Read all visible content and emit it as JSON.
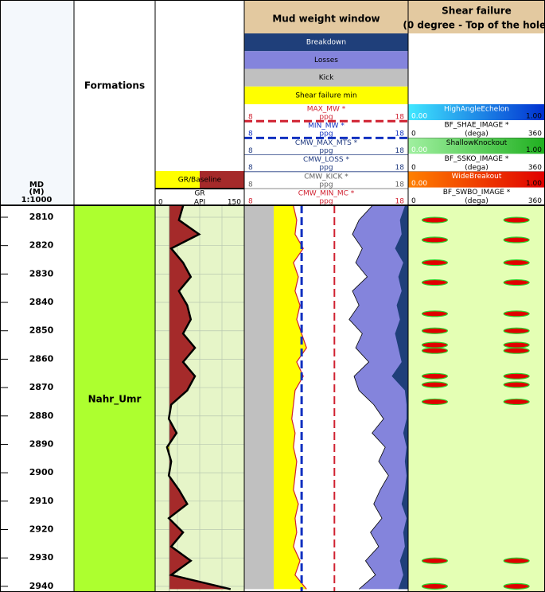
{
  "md_track": {
    "title": [
      "MD",
      "(M)"
    ],
    "scale": "1:1000",
    "ylim": [
      2805.8,
      2942
    ],
    "yticks": [
      2810,
      2820,
      2830,
      2840,
      2850,
      2860,
      2870,
      2880,
      2890,
      2900,
      2910,
      2920,
      2930,
      2940
    ]
  },
  "formations": {
    "title": "Formations",
    "zones": [
      "Nahr_Umr"
    ]
  },
  "depth": [
    2806,
    2811,
    2816,
    2821,
    2826,
    2831,
    2836,
    2841,
    2846,
    2851,
    2856,
    2861,
    2866,
    2871,
    2876,
    2881,
    2886,
    2891,
    2896,
    2901,
    2906,
    2911,
    2916,
    2921,
    2926,
    2931,
    2936,
    2941
  ],
  "gr_track": {
    "fill_label": "GR/Baseline",
    "curve": "GR",
    "xlim": [
      0,
      150
    ],
    "unit": "API",
    "baseline": 24,
    "values": [
      47,
      40,
      74,
      27,
      47,
      60,
      40,
      54,
      60,
      47,
      67,
      47,
      67,
      54,
      27,
      23,
      36,
      20,
      27,
      23,
      40,
      54,
      23,
      47,
      27,
      60,
      27,
      127
    ]
  },
  "mud_weight": {
    "title": "Mud weight window",
    "legend": [
      {
        "name": "Breakdown",
        "color": "#1f3f7a"
      },
      {
        "name": "Losses",
        "color": "#8484dc"
      },
      {
        "name": "Kick",
        "color": "#c0c0c0"
      },
      {
        "name": "Shear failure min",
        "color": "#ffff00"
      }
    ],
    "curves": [
      {
        "name": "MAX_MW *",
        "color": "#d02030",
        "xlim": [
          8,
          18
        ],
        "unit": "ppg"
      },
      {
        "name": "MIN_MW *",
        "color": "#1030c0",
        "xlim": [
          8,
          18
        ],
        "unit": "ppg"
      },
      {
        "name": "CMW_MAX_MTS *",
        "color": "#203a80",
        "xlim": [
          8,
          18
        ],
        "unit": "ppg"
      },
      {
        "name": "CMW_LOSS *",
        "color": "#203a80",
        "xlim": [
          8,
          18
        ],
        "unit": "ppg"
      },
      {
        "name": "CMW_KICK *",
        "color": "#606060",
        "xlim": [
          8,
          18
        ],
        "unit": "ppg"
      },
      {
        "name": "CMW_MIN_MC *",
        "color": "#d02030",
        "xlim": [
          8,
          18
        ],
        "unit": "ppg"
      }
    ],
    "max_mw": 13.5,
    "min_mw": 11.5,
    "kick": [
      9.8,
      9.8,
      9.8,
      9.8,
      9.8,
      9.8,
      9.8,
      9.8,
      9.8,
      9.8,
      9.8,
      9.8,
      9.8,
      9.8,
      9.8,
      9.8,
      9.8,
      9.8,
      9.8,
      9.8,
      9.8,
      9.8,
      9.8,
      9.8,
      9.8,
      9.8,
      9.8,
      9.8
    ],
    "shear_failure_min": [
      11.0,
      11.2,
      11.1,
      11.6,
      11.0,
      11.3,
      11.1,
      11.4,
      11.2,
      11.5,
      11.8,
      11.2,
      11.6,
      11.1,
      11.0,
      10.9,
      11.1,
      11.0,
      11.2,
      11.1,
      11.0,
      11.3,
      11.1,
      11.2,
      11.0,
      11.4,
      11.1,
      11.8
    ],
    "losses": [
      15.8,
      15.0,
      14.6,
      15.2,
      14.8,
      15.5,
      14.6,
      15.0,
      14.4,
      15.2,
      14.8,
      15.6,
      14.7,
      15.0,
      15.9,
      16.5,
      15.8,
      16.6,
      16.2,
      16.8,
      16.3,
      15.9,
      16.4,
      15.7,
      16.2,
      15.4,
      16.0,
      15.0
    ],
    "breakdown": [
      17.8,
      17.5,
      17.6,
      17.2,
      17.7,
      17.4,
      17.6,
      17.3,
      17.5,
      17.2,
      17.4,
      17.6,
      17.0,
      17.8,
      17.9,
      17.9,
      17.7,
      17.9,
      17.8,
      17.9,
      17.8,
      17.6,
      17.9,
      17.7,
      17.8,
      17.5,
      17.7,
      17.4
    ]
  },
  "shear_failure": {
    "title": "Shear failure",
    "subtitle": "(0 degree - Top of the hole)",
    "images": [
      {
        "name": "HighAngleEchelon",
        "colors": [
          "#40e8ff",
          "#0030d0"
        ],
        "range": [
          "0.00",
          "1.00"
        ],
        "curve": "BF_SHAE_IMAGE *",
        "xlim": [
          0,
          360
        ],
        "unit": "(dega)"
      },
      {
        "name": "ShallowKnockout",
        "colors": [
          "#a0f0a0",
          "#20b020"
        ],
        "range": [
          "0.00",
          "1.00"
        ],
        "curve": "BF_SSKO_IMAGE *",
        "xlim": [
          0,
          360
        ],
        "unit": "(dega)"
      },
      {
        "name": "WideBreakout",
        "colors": [
          "#ff8000",
          "#e00000"
        ],
        "range": [
          "0.00",
          "1.00"
        ],
        "curve": "BF_SWBO_IMAGE *",
        "xlim": [
          0,
          360
        ],
        "unit": "(dega)"
      }
    ],
    "breakouts": [
      {
        "depth": 2811,
        "azimuths": [
          70,
          285
        ]
      },
      {
        "depth": 2818,
        "azimuths": [
          70,
          285
        ]
      },
      {
        "depth": 2826,
        "azimuths": [
          70,
          285
        ]
      },
      {
        "depth": 2833,
        "azimuths": [
          70,
          285
        ]
      },
      {
        "depth": 2844,
        "azimuths": [
          70,
          285
        ]
      },
      {
        "depth": 2850,
        "azimuths": [
          70,
          285
        ]
      },
      {
        "depth": 2855,
        "azimuths": [
          70,
          285
        ]
      },
      {
        "depth": 2857,
        "azimuths": [
          70,
          285
        ]
      },
      {
        "depth": 2866,
        "azimuths": [
          70,
          285
        ]
      },
      {
        "depth": 2869,
        "azimuths": [
          70,
          285
        ]
      },
      {
        "depth": 2875,
        "azimuths": [
          70,
          285
        ]
      },
      {
        "depth": 2931,
        "azimuths": [
          70,
          285
        ]
      },
      {
        "depth": 2940,
        "azimuths": [
          70,
          285
        ]
      }
    ]
  }
}
